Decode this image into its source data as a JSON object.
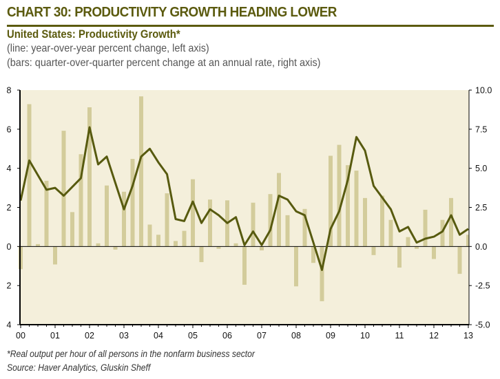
{
  "header": {
    "title": "CHART 30: PRODUCTIVITY GROWTH HEADING LOWER",
    "subtitle": "United States: Productivity Growth*",
    "description_line": "(line: year-over-year percent change, left axis)",
    "description_bars": "(bars: quarter-over-quarter percent change at an annual rate, right axis)"
  },
  "footer": {
    "note": "*Real output per hour of all persons in the nonfarm business sector",
    "source": "Source: Haver Analytics, Gluskin Sheff"
  },
  "colors": {
    "title": "#5b5a0e",
    "plot_background": "#f4efdb",
    "bars": "#d3cc9b",
    "line": "#575a0f",
    "axis": "#000000"
  },
  "chart_data": {
    "type": "bar+line",
    "title": "United States: Productivity Growth*",
    "xlabel": "",
    "x_tick_labels": [
      "00",
      "01",
      "02",
      "03",
      "04",
      "05",
      "06",
      "07",
      "08",
      "09",
      "10",
      "11",
      "12",
      "13"
    ],
    "x": [
      "00Q1",
      "00Q2",
      "00Q3",
      "00Q4",
      "01Q1",
      "01Q2",
      "01Q3",
      "01Q4",
      "02Q1",
      "02Q2",
      "02Q3",
      "02Q4",
      "03Q1",
      "03Q2",
      "03Q3",
      "03Q4",
      "04Q1",
      "04Q2",
      "04Q3",
      "04Q4",
      "05Q1",
      "05Q2",
      "05Q3",
      "05Q4",
      "06Q1",
      "06Q2",
      "06Q3",
      "06Q4",
      "07Q1",
      "07Q2",
      "07Q3",
      "07Q4",
      "08Q1",
      "08Q2",
      "08Q3",
      "08Q4",
      "09Q1",
      "09Q2",
      "09Q3",
      "09Q4",
      "10Q1",
      "10Q2",
      "10Q3",
      "10Q4",
      "11Q1",
      "11Q2",
      "11Q3",
      "11Q4",
      "12Q1",
      "12Q2",
      "12Q3",
      "12Q4",
      "13Q1"
    ],
    "left_axis": {
      "label": "year-over-year percent change",
      "ylim": [
        -4,
        8
      ],
      "tick_labels": [
        "8",
        "6",
        "4",
        "2",
        "0",
        "-2",
        "-4"
      ],
      "tick_values": [
        8,
        6,
        4,
        2,
        0,
        -2,
        -4
      ]
    },
    "right_axis": {
      "label": "quarter-over-quarter percent change at an annual rate",
      "ylim": [
        -5,
        10
      ],
      "tick_labels": [
        "10.0",
        "7.5",
        "5.0",
        "2.5",
        "0.0",
        "-2.5",
        "-5.0"
      ],
      "tick_values": [
        10,
        7.5,
        5,
        2.5,
        0,
        -2.5,
        -5
      ]
    },
    "series": [
      {
        "name": "Year-over-year % change (line, left axis)",
        "type": "line",
        "axis": "left",
        "values": [
          2.35,
          4.4,
          3.65,
          2.9,
          3.0,
          2.6,
          3.05,
          3.5,
          6.1,
          4.2,
          4.6,
          3.25,
          1.9,
          3.1,
          4.6,
          5.0,
          4.3,
          3.7,
          1.4,
          1.3,
          2.3,
          1.2,
          1.9,
          1.6,
          1.2,
          1.5,
          0.07,
          0.77,
          0.07,
          0.84,
          2.6,
          2.4,
          1.8,
          1.6,
          0.2,
          -1.2,
          0.9,
          1.8,
          3.4,
          5.6,
          4.9,
          3.1,
          2.5,
          1.9,
          0.77,
          1.0,
          0.2,
          0.4,
          0.5,
          0.77,
          1.6,
          0.6,
          0.9
        ]
      },
      {
        "name": "Quarter-over-quarter % change, annual rate (bars, right axis)",
        "type": "bar",
        "axis": "right",
        "values": [
          -1.45,
          9.1,
          0.15,
          4.2,
          -1.15,
          7.4,
          2.2,
          5.9,
          8.9,
          0.2,
          3.9,
          -0.2,
          3.5,
          5.6,
          9.6,
          1.4,
          0.75,
          3.4,
          0.35,
          1.0,
          4.3,
          -1.0,
          3.0,
          -0.15,
          2.95,
          0.2,
          -2.45,
          2.8,
          -0.25,
          3.35,
          4.7,
          2.0,
          -2.55,
          2.4,
          -1.05,
          -3.5,
          5.8,
          6.5,
          5.2,
          4.85,
          3.1,
          -0.55,
          3.25,
          1.7,
          -1.35,
          0.6,
          -0.15,
          2.35,
          -0.8,
          1.7,
          3.1,
          -1.75,
          0.75
        ]
      }
    ],
    "grid": false,
    "legend": "none"
  }
}
